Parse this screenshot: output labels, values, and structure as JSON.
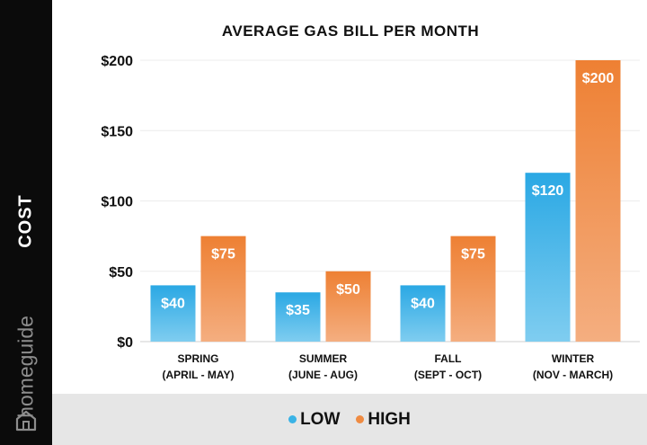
{
  "brand": {
    "name": "homeguide",
    "icon": "house-icon"
  },
  "colors": {
    "low": "#3ab3e6",
    "high": "#ef8b42",
    "sidebar": "#0b0b0b",
    "legend_band": "#e6e6e6"
  },
  "legend": {
    "low": "LOW",
    "high": "HIGH"
  },
  "chart_data": {
    "type": "bar",
    "title": "AVERAGE GAS BILL PER MONTH",
    "ylabel": "COST",
    "xlabel": "",
    "ylim": [
      0,
      200
    ],
    "yticks": [
      0,
      50,
      100,
      150,
      200
    ],
    "ytick_labels": [
      "$0",
      "$50",
      "$100",
      "$150",
      "$200"
    ],
    "categories": [
      [
        "SPRING",
        "(APRIL - MAY)"
      ],
      [
        "SUMMER",
        "(JUNE - AUG)"
      ],
      [
        "FALL",
        "(SEPT - OCT)"
      ],
      [
        "WINTER",
        "(NOV - MARCH)"
      ]
    ],
    "series": [
      {
        "name": "LOW",
        "values": [
          40,
          35,
          40,
          120
        ],
        "labels": [
          "$40",
          "$35",
          "$40",
          "$120"
        ]
      },
      {
        "name": "HIGH",
        "values": [
          75,
          50,
          75,
          200
        ],
        "labels": [
          "$75",
          "$50",
          "$75",
          "$200"
        ]
      }
    ],
    "grid": true,
    "legend_position": "bottom"
  }
}
